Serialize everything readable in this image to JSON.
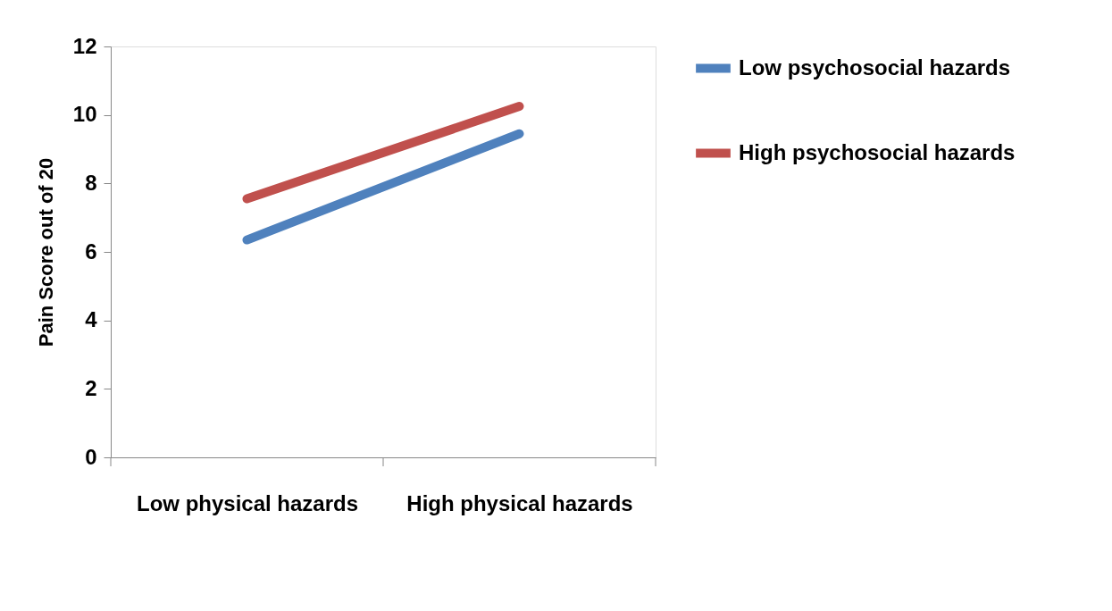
{
  "chart_data": {
    "type": "line",
    "ylabel": "Pain Score out of 20",
    "categories": [
      "Low physical hazards",
      "High physical hazards"
    ],
    "series": [
      {
        "name": "Low psychosocial hazards",
        "color": "#4f81bd",
        "values": [
          6.35,
          9.45
        ]
      },
      {
        "name": "High psychosocial hazards",
        "color": "#c0504d",
        "values": [
          7.55,
          10.25
        ]
      }
    ],
    "ylim": [
      0,
      12
    ],
    "yticks": [
      0,
      2,
      4,
      6,
      8,
      10,
      12
    ],
    "grid": false,
    "legend": "right",
    "marker": "none",
    "line_style": "solid"
  }
}
